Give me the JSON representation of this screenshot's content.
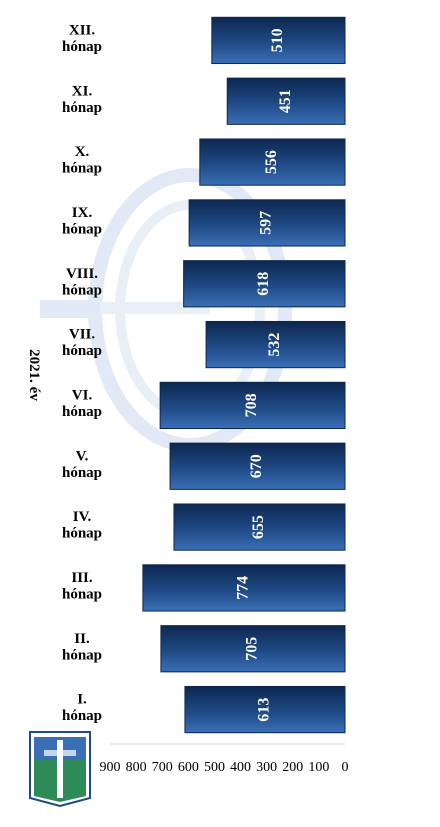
{
  "chart_data": {
    "type": "bar",
    "title": "2021. év",
    "xlabel": "",
    "ylabel": "",
    "categories": [
      [
        "I.",
        "hónap"
      ],
      [
        "II.",
        "hónap"
      ],
      [
        "III.",
        "hónap"
      ],
      [
        "IV.",
        "hónap"
      ],
      [
        "V.",
        "hónap"
      ],
      [
        "VI.",
        "hónap"
      ],
      [
        "VII.",
        "hónap"
      ],
      [
        "VIII.",
        "hónap"
      ],
      [
        "IX.",
        "hónap"
      ],
      [
        "X.",
        "hónap"
      ],
      [
        "XI.",
        "hónap"
      ],
      [
        "XII.",
        "hónap"
      ]
    ],
    "values": [
      613,
      705,
      774,
      655,
      670,
      708,
      532,
      618,
      597,
      556,
      451,
      510
    ],
    "ylim": [
      0,
      900
    ],
    "yticks": [
      0,
      100,
      200,
      300,
      400,
      500,
      600,
      700,
      800,
      900
    ],
    "grid": false,
    "legend": "none",
    "orientation": "rotated-90-clockwise",
    "colors": {
      "bar": "#1f4a86",
      "bar_light": "#3a6fb5",
      "bar_dark": "#0d2750",
      "label": "#ffffff",
      "text": "#000000",
      "watermark": "#c8d8ee"
    }
  }
}
